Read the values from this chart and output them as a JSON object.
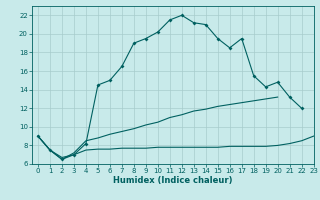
{
  "xlabel": "Humidex (Indice chaleur)",
  "x_values": [
    0,
    1,
    2,
    3,
    4,
    5,
    6,
    7,
    8,
    9,
    10,
    11,
    12,
    13,
    14,
    15,
    16,
    17,
    18,
    19,
    20,
    21,
    22,
    23
  ],
  "line1_y": [
    9.0,
    7.5,
    6.5,
    7.0,
    8.2,
    14.5,
    15.0,
    16.5,
    19.0,
    19.5,
    20.2,
    21.5,
    22.0,
    21.2,
    21.0,
    19.5,
    18.5,
    19.5,
    15.5,
    14.3,
    14.8,
    13.2,
    12.0,
    null
  ],
  "line2_y": [
    9.0,
    7.5,
    6.5,
    7.2,
    8.5,
    8.8,
    9.2,
    9.5,
    9.8,
    10.2,
    10.5,
    11.0,
    11.3,
    11.7,
    11.9,
    12.2,
    12.4,
    12.6,
    12.8,
    13.0,
    13.2,
    null,
    null,
    null
  ],
  "line3_y": [
    9.0,
    7.5,
    6.7,
    7.0,
    7.5,
    7.6,
    7.6,
    7.7,
    7.7,
    7.7,
    7.8,
    7.8,
    7.8,
    7.8,
    7.8,
    7.8,
    7.9,
    7.9,
    7.9,
    7.9,
    8.0,
    8.2,
    8.5,
    9.0
  ],
  "bg_color": "#c8eaea",
  "grid_color": "#a8cccc",
  "line_color": "#006060",
  "ylim": [
    6,
    23
  ],
  "xlim": [
    -0.5,
    23
  ],
  "yticks": [
    6,
    8,
    10,
    12,
    14,
    16,
    18,
    20,
    22
  ],
  "xticks": [
    0,
    1,
    2,
    3,
    4,
    5,
    6,
    7,
    8,
    9,
    10,
    11,
    12,
    13,
    14,
    15,
    16,
    17,
    18,
    19,
    20,
    21,
    22,
    23
  ],
  "tick_fontsize": 5.0,
  "xlabel_fontsize": 6.0
}
